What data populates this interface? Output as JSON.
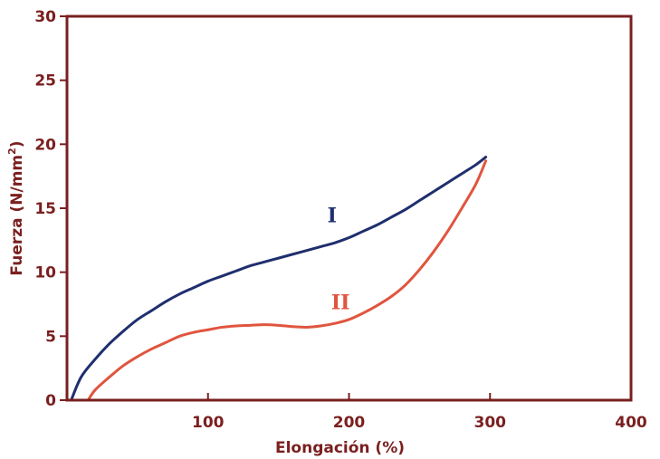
{
  "chart_data": {
    "type": "line",
    "xlabel": "Elongación (%)",
    "ylabel_main": "Fuerza (N/mm",
    "ylabel_sup": "2",
    "ylabel_close": ")",
    "xlim": [
      0,
      400
    ],
    "ylim": [
      0,
      30
    ],
    "xticks": [
      100,
      200,
      300,
      400
    ],
    "yticks": [
      0,
      5,
      10,
      15,
      20,
      25,
      30
    ],
    "grid": false,
    "colors": {
      "frame": "#7a1f1f",
      "tick_text": "#7a1f1f",
      "series_I": "#1f2f6e",
      "series_II": "#e0553f"
    },
    "series": [
      {
        "name": "I",
        "label_at": [
          188,
          13.9
        ],
        "x": [
          3,
          10,
          20,
          30,
          40,
          50,
          60,
          70,
          80,
          90,
          100,
          110,
          120,
          130,
          140,
          150,
          160,
          170,
          180,
          190,
          200,
          210,
          220,
          230,
          240,
          250,
          260,
          270,
          280,
          290,
          297
        ],
        "y": [
          0,
          1.8,
          3.2,
          4.4,
          5.4,
          6.3,
          7.0,
          7.7,
          8.3,
          8.8,
          9.3,
          9.7,
          10.1,
          10.5,
          10.8,
          11.1,
          11.4,
          11.7,
          12.0,
          12.3,
          12.7,
          13.2,
          13.7,
          14.3,
          14.9,
          15.6,
          16.3,
          17.0,
          17.7,
          18.4,
          19.0
        ]
      },
      {
        "name": "II",
        "label_at": [
          194,
          7.1
        ],
        "x": [
          15,
          20,
          30,
          40,
          50,
          60,
          70,
          80,
          90,
          100,
          110,
          120,
          130,
          140,
          150,
          160,
          170,
          180,
          190,
          200,
          210,
          220,
          230,
          240,
          250,
          260,
          270,
          280,
          290,
          297
        ],
        "y": [
          0,
          0.8,
          1.8,
          2.7,
          3.4,
          4.0,
          4.5,
          5.0,
          5.3,
          5.5,
          5.7,
          5.8,
          5.85,
          5.9,
          5.85,
          5.75,
          5.7,
          5.8,
          6.0,
          6.3,
          6.8,
          7.4,
          8.1,
          9.0,
          10.2,
          11.6,
          13.2,
          15.0,
          16.9,
          18.7
        ]
      }
    ]
  }
}
